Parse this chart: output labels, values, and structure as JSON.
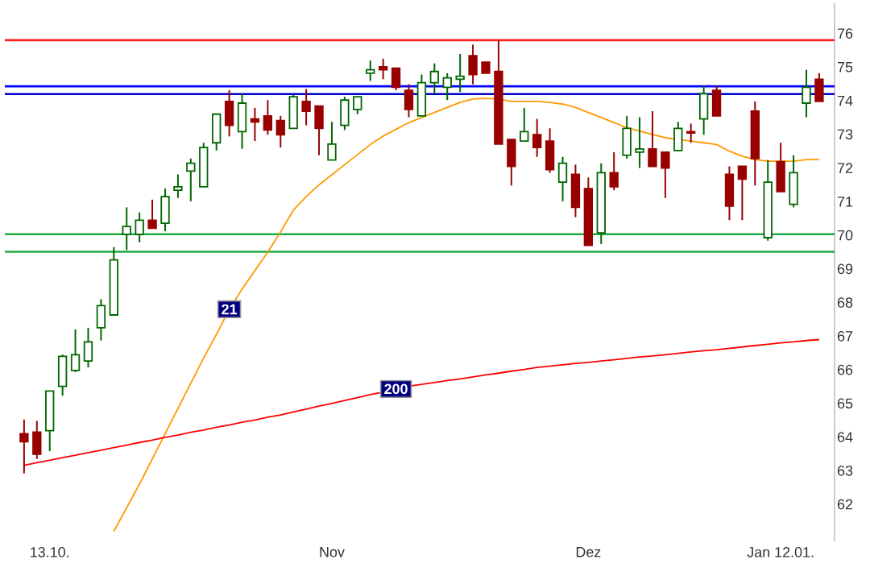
{
  "chart_data": {
    "type": "candlestick",
    "categories": [
      null,
      null,
      "13.10.",
      null,
      null,
      null,
      null,
      null,
      null,
      null,
      null,
      null,
      null,
      null,
      null,
      null,
      null,
      null,
      null,
      null,
      null,
      null,
      null,
      null,
      "Nov",
      null,
      null,
      null,
      null,
      null,
      null,
      null,
      null,
      null,
      null,
      null,
      null,
      null,
      null,
      null,
      null,
      null,
      null,
      null,
      "Dez",
      null,
      null,
      null,
      null,
      null,
      null,
      null,
      null,
      null,
      null,
      null,
      null,
      null,
      null,
      "Jan 12.01.",
      null,
      null,
      null
    ],
    "ohlc": [
      [
        64.1,
        64.52,
        62.92,
        63.86
      ],
      [
        64.15,
        64.48,
        63.35,
        63.49
      ],
      [
        64.19,
        65.37,
        63.58,
        65.37
      ],
      [
        65.51,
        66.45,
        65.23,
        66.4
      ],
      [
        65.98,
        67.2,
        65.93,
        66.45
      ],
      [
        66.26,
        67.25,
        66.07,
        66.83
      ],
      [
        67.25,
        68.1,
        66.87,
        67.91
      ],
      [
        67.63,
        69.65,
        67.63,
        69.27
      ],
      [
        70.03,
        70.83,
        69.56,
        70.26
      ],
      [
        70.03,
        70.68,
        69.79,
        70.45
      ],
      [
        70.45,
        71.06,
        70.21,
        70.21
      ],
      [
        70.36,
        71.39,
        70.12,
        71.15
      ],
      [
        71.34,
        71.81,
        71.11,
        71.44
      ],
      [
        71.91,
        72.28,
        71.01,
        72.14
      ],
      [
        71.44,
        72.75,
        71.44,
        72.61
      ],
      [
        72.75,
        73.6,
        72.52,
        73.6
      ],
      [
        73.98,
        74.31,
        72.94,
        73.27
      ],
      [
        73.08,
        74.21,
        72.57,
        73.93
      ],
      [
        73.46,
        73.79,
        72.8,
        73.37
      ],
      [
        73.55,
        74.02,
        72.99,
        73.13
      ],
      [
        73.41,
        73.55,
        72.61,
        72.99
      ],
      [
        73.18,
        74.17,
        73.18,
        74.12
      ],
      [
        73.98,
        74.35,
        73.27,
        73.69
      ],
      [
        73.84,
        73.84,
        72.38,
        73.18
      ],
      [
        72.24,
        73.37,
        72.24,
        72.71
      ],
      [
        73.27,
        74.12,
        73.13,
        74.02
      ],
      [
        73.74,
        74.12,
        73.6,
        74.12
      ],
      [
        74.82,
        75.2,
        74.59,
        74.92
      ],
      [
        75.01,
        75.25,
        74.64,
        74.92
      ],
      [
        74.97,
        74.97,
        74.31,
        74.4
      ],
      [
        74.31,
        74.49,
        73.51,
        73.74
      ],
      [
        73.55,
        74.78,
        73.55,
        74.54
      ],
      [
        74.54,
        75.11,
        74.21,
        74.87
      ],
      [
        74.4,
        74.82,
        74.02,
        74.68
      ],
      [
        74.64,
        75.39,
        74.26,
        74.73
      ],
      [
        75.34,
        75.67,
        74.49,
        74.78
      ],
      [
        75.15,
        75.15,
        74.82,
        74.82
      ],
      [
        74.87,
        75.81,
        72.71,
        72.71
      ],
      [
        72.85,
        72.85,
        71.48,
        72.05
      ],
      [
        72.8,
        73.79,
        72.8,
        73.08
      ],
      [
        72.99,
        73.46,
        72.33,
        72.61
      ],
      [
        72.8,
        73.18,
        71.86,
        71.95
      ],
      [
        71.58,
        72.33,
        71.01,
        72.14
      ],
      [
        71.81,
        72.1,
        70.54,
        70.83
      ],
      [
        71.39,
        71.72,
        69.7,
        69.7
      ],
      [
        70.07,
        72.14,
        69.74,
        71.86
      ],
      [
        71.86,
        72.47,
        71.34,
        71.44
      ],
      [
        72.38,
        73.55,
        72.28,
        73.18
      ],
      [
        72.47,
        73.51,
        72.0,
        72.57
      ],
      [
        72.57,
        73.69,
        72.05,
        72.05
      ],
      [
        72.47,
        72.47,
        71.11,
        72.0
      ],
      [
        72.52,
        73.37,
        72.52,
        73.18
      ],
      [
        73.08,
        73.32,
        72.75,
        73.04
      ],
      [
        73.46,
        74.45,
        72.99,
        74.21
      ],
      [
        74.31,
        74.45,
        73.55,
        73.55
      ],
      [
        71.81,
        72.05,
        70.45,
        70.87
      ],
      [
        72.05,
        72.05,
        70.45,
        71.67
      ],
      [
        73.69,
        73.98,
        71.48,
        72.28
      ],
      [
        69.93,
        72.24,
        69.84,
        71.58
      ],
      [
        72.19,
        72.75,
        71.3,
        71.3
      ],
      [
        70.92,
        72.38,
        70.83,
        71.86
      ],
      [
        73.93,
        74.92,
        73.51,
        74.4
      ],
      [
        74.64,
        74.82,
        73.98,
        73.98
      ]
    ],
    "colors": [
      "#990000",
      "#990000",
      "#006600",
      "#006600",
      "#006600",
      "#006600",
      "#006600",
      "#006600",
      "#006600",
      "#006600",
      "#990000",
      "#006600",
      "#006600",
      "#006600",
      "#006600",
      "#006600",
      "#990000",
      "#006600",
      "#990000",
      "#990000",
      "#990000",
      "#006600",
      "#990000",
      "#990000",
      "#006600",
      "#006600",
      "#006600",
      "#006600",
      "#990000",
      "#990000",
      "#990000",
      "#006600",
      "#006600",
      "#006600",
      "#006600",
      "#990000",
      "#990000",
      "#990000",
      "#990000",
      "#006600",
      "#990000",
      "#990000",
      "#006600",
      "#990000",
      "#990000",
      "#006600",
      "#990000",
      "#006600",
      "#006600",
      "#990000",
      "#990000",
      "#006600",
      "#990000",
      "#006600",
      "#990000",
      "#990000",
      "#990000",
      "#990000",
      "#006600",
      "#990000",
      "#006600",
      "#006600",
      "#990000"
    ],
    "series": [
      {
        "name": "21",
        "type": "line",
        "color": "#ff9900",
        "values": [
          null,
          null,
          null,
          null,
          null,
          null,
          null,
          61.2,
          61.9,
          62.6,
          63.35,
          64.1,
          64.85,
          65.6,
          66.35,
          67.05,
          67.8,
          68.4,
          68.95,
          69.5,
          70.1,
          70.75,
          71.15,
          71.5,
          71.8,
          72.1,
          72.4,
          72.7,
          72.95,
          73.15,
          73.35,
          73.5,
          73.65,
          73.8,
          73.95,
          74.05,
          74.07,
          74.05,
          73.98,
          73.98,
          73.98,
          73.95,
          73.9,
          73.8,
          73.65,
          73.5,
          73.35,
          73.2,
          73.1,
          73.0,
          72.9,
          72.85,
          72.8,
          72.75,
          72.7,
          72.5,
          72.35,
          72.25,
          72.2,
          72.2,
          72.2,
          72.25,
          72.25
        ]
      },
      {
        "name": "200",
        "type": "line",
        "color": "#ff0000",
        "values": [
          63.16,
          63.24,
          63.31,
          63.39,
          63.46,
          63.54,
          63.61,
          63.69,
          63.76,
          63.84,
          63.91,
          63.99,
          64.06,
          64.14,
          64.21,
          64.29,
          64.36,
          64.44,
          64.51,
          64.59,
          64.66,
          64.75,
          64.83,
          64.92,
          65.0,
          65.09,
          65.17,
          65.26,
          65.34,
          65.43,
          65.51,
          65.57,
          65.62,
          65.68,
          65.73,
          65.79,
          65.85,
          65.9,
          65.96,
          66.01,
          66.07,
          66.11,
          66.15,
          66.19,
          66.22,
          66.26,
          66.3,
          66.34,
          66.38,
          66.41,
          66.45,
          66.49,
          66.53,
          66.57,
          66.6,
          66.64,
          66.68,
          66.72,
          66.76,
          66.8,
          66.83,
          66.87,
          66.9
        ]
      }
    ],
    "ref_lines": [
      {
        "axis": "y",
        "value": 75.8,
        "color": "#ff2222"
      },
      {
        "axis": "y",
        "value": 74.43,
        "color": "#0000ff"
      },
      {
        "axis": "y",
        "value": 74.2,
        "color": "#0000cc"
      },
      {
        "axis": "y",
        "value": 70.03,
        "color": "#22aa44"
      },
      {
        "axis": "y",
        "value": 69.51,
        "color": "#22aa44"
      }
    ],
    "ylim": [
      60.9,
      76.9
    ],
    "yticks": [
      62,
      63,
      64,
      65,
      66,
      67,
      68,
      69,
      70,
      71,
      72,
      73,
      74,
      75,
      76
    ],
    "grid": false
  }
}
